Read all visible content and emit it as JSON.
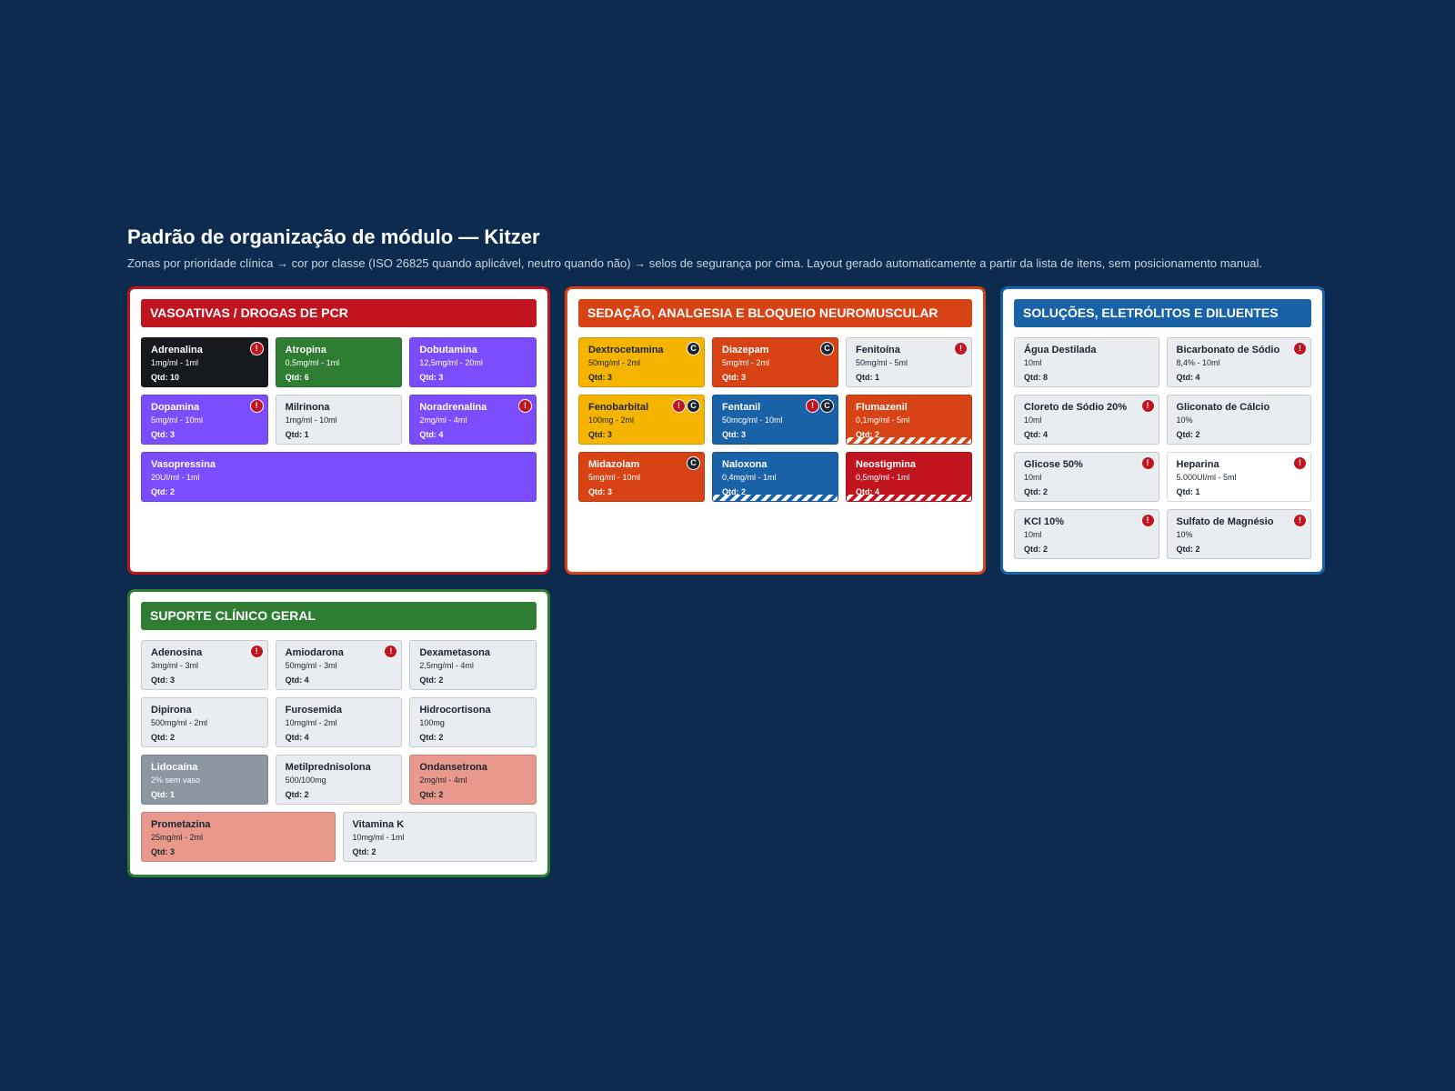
{
  "header": {
    "title": "Padrão de organização de módulo — Kitzer",
    "subtitle": "Zonas por prioridade clínica → cor por classe (ISO 26825 quando aplicável, neutro quando não) → selos de segurança por cima. Layout gerado automaticamente a partir da lista de itens, sem posicionamento manual."
  },
  "panels": [
    {
      "title": "VASOATIVAS / DROGAS DE PCR",
      "color": "#c0141f",
      "columns": 3,
      "items": [
        {
          "name": "Adrenalina",
          "dose": "1mg/ml - 1ml",
          "qty": "Qtd: 10",
          "color": "#16191d",
          "badges": [
            "!"
          ]
        },
        {
          "name": "Atropina",
          "dose": "0,5mg/ml - 1ml",
          "qty": "Qtd: 6",
          "color": "#2e7d32",
          "badges": []
        },
        {
          "name": "Dobutamina",
          "dose": "12,5mg/ml - 20ml",
          "qty": "Qtd: 3",
          "color": "#7c4dff",
          "badges": []
        },
        {
          "name": "Dopamina",
          "dose": "5mg/ml - 10ml",
          "qty": "Qtd: 3",
          "color": "#7c4dff",
          "badges": [
            "!"
          ]
        },
        {
          "name": "Milrinona",
          "dose": "1mg/ml - 10ml",
          "qty": "Qtd: 1",
          "color": "#e9ecf0",
          "badges": []
        },
        {
          "name": "Noradrenalina",
          "dose": "2mg/ml - 4ml",
          "qty": "Qtd: 4",
          "color": "#7c4dff",
          "badges": [
            "!"
          ]
        },
        {
          "name": "Vasopressina",
          "dose": "20UI/ml - 1ml",
          "qty": "Qtd: 2",
          "color": "#7c4dff",
          "badges": []
        }
      ]
    },
    {
      "title": "SEDAÇÃO, ANALGESIA E BLOQUEIO NEUROMUSCULAR",
      "color": "#d84315",
      "columns": 3,
      "items": [
        {
          "name": "Dextrocetamina",
          "dose": "50mg/ml - 2ml",
          "qty": "Qtd: 3",
          "color": "#f5b400",
          "badges": [
            "C"
          ]
        },
        {
          "name": "Diazepam",
          "dose": "5mg/ml - 2ml",
          "qty": "Qtd: 3",
          "color": "#d84315",
          "badges": [
            "C"
          ]
        },
        {
          "name": "Fenitoína",
          "dose": "50mg/ml - 5ml",
          "qty": "Qtd: 1",
          "color": "#e9ecf0",
          "badges": [
            "!"
          ]
        },
        {
          "name": "Fenobarbital",
          "dose": "100mg - 2ml",
          "qty": "Qtd: 3",
          "color": "#f5b400",
          "badges": [
            "!",
            "C"
          ]
        },
        {
          "name": "Fentanil",
          "dose": "50mcg/ml - 10ml",
          "qty": "Qtd: 3",
          "color": "#1a62a8",
          "badges": [
            "!",
            "C"
          ]
        },
        {
          "name": "Flumazenil",
          "dose": "0,1mg/ml - 5ml",
          "qty": "Qtd: 2",
          "color": "#d84315",
          "badges": [],
          "striped": true
        },
        {
          "name": "Midazolam",
          "dose": "5mg/ml - 10ml",
          "qty": "Qtd: 3",
          "color": "#d84315",
          "badges": [
            "C"
          ]
        },
        {
          "name": "Naloxona",
          "dose": "0,4mg/ml - 1ml",
          "qty": "Qtd: 2",
          "color": "#1a62a8",
          "badges": [],
          "striped": true
        },
        {
          "name": "Neostigmina",
          "dose": "0,5mg/ml - 1ml",
          "qty": "Qtd: 4",
          "color": "#c0141f",
          "badges": [],
          "striped": true
        }
      ]
    },
    {
      "title": "SOLUÇÕES, ELETRÓLITOS E DILUENTES",
      "color": "#1a62a8",
      "columns": 2,
      "items": [
        {
          "name": "Água Destilada",
          "dose": "10ml",
          "qty": "Qtd: 8",
          "color": "#e9ecf0",
          "badges": []
        },
        {
          "name": "Bicarbonato de Sódio",
          "dose": "8,4% - 10ml",
          "qty": "Qtd: 4",
          "color": "#e9ecf0",
          "badges": [
            "!"
          ]
        },
        {
          "name": "Cloreto de Sódio 20%",
          "dose": "10ml",
          "qty": "Qtd: 4",
          "color": "#e9ecf0",
          "badges": [
            "!"
          ]
        },
        {
          "name": "Gliconato de Cálcio",
          "dose": "10%",
          "qty": "Qtd: 2",
          "color": "#e9ecf0",
          "badges": []
        },
        {
          "name": "Glicose 50%",
          "dose": "10ml",
          "qty": "Qtd: 2",
          "color": "#e9ecf0",
          "badges": [
            "!"
          ]
        },
        {
          "name": "Heparina",
          "dose": "5.000UI/ml - 5ml",
          "qty": "Qtd: 1",
          "color": "#ffffff",
          "badges": [
            "!"
          ]
        },
        {
          "name": "KCl 10%",
          "dose": "10ml",
          "qty": "Qtd: 2",
          "color": "#e9ecf0",
          "badges": [
            "!"
          ]
        },
        {
          "name": "Sulfato de Magnésio",
          "dose": "10%",
          "qty": "Qtd: 2",
          "color": "#e9ecf0",
          "badges": [
            "!"
          ]
        }
      ]
    },
    {
      "title": "SUPORTE CLÍNICO GERAL",
      "color": "#2e7d32",
      "columns": 3,
      "items": [
        {
          "name": "Adenosina",
          "dose": "3mg/ml - 3ml",
          "qty": "Qtd: 3",
          "color": "#e9ecf0",
          "badges": [
            "!"
          ]
        },
        {
          "name": "Amiodarona",
          "dose": "50mg/ml - 3ml",
          "qty": "Qtd: 4",
          "color": "#e9ecf0",
          "badges": [
            "!"
          ]
        },
        {
          "name": "Dexametasona",
          "dose": "2,5mg/ml - 4ml",
          "qty": "Qtd: 2",
          "color": "#e9ecf0",
          "badges": []
        },
        {
          "name": "Dipirona",
          "dose": "500mg/ml - 2ml",
          "qty": "Qtd: 2",
          "color": "#e9ecf0",
          "badges": []
        },
        {
          "name": "Furosemida",
          "dose": "10mg/ml - 2ml",
          "qty": "Qtd: 4",
          "color": "#e9ecf0",
          "badges": []
        },
        {
          "name": "Hidrocortisona",
          "dose": "100mg",
          "qty": "Qtd: 2",
          "color": "#e9ecf0",
          "badges": []
        },
        {
          "name": "Lidocaína",
          "dose": "2% sem vaso",
          "qty": "Qtd: 1",
          "color": "#8d97a1",
          "badges": []
        },
        {
          "name": "Metilprednisolona",
          "dose": "500/100mg",
          "qty": "Qtd: 2",
          "color": "#e9ecf0",
          "badges": []
        },
        {
          "name": "Ondansetrona",
          "dose": "2mg/ml - 4ml",
          "qty": "Qtd: 2",
          "color": "#e8998b",
          "badges": []
        },
        {
          "name": "Prometazina",
          "dose": "25mg/ml - 2ml",
          "qty": "Qtd: 3",
          "color": "#e8998b",
          "badges": []
        },
        {
          "name": "Vitamina K",
          "dose": "10mg/ml - 1ml",
          "qty": "Qtd: 2",
          "color": "#e9ecf0",
          "badges": []
        }
      ]
    }
  ]
}
